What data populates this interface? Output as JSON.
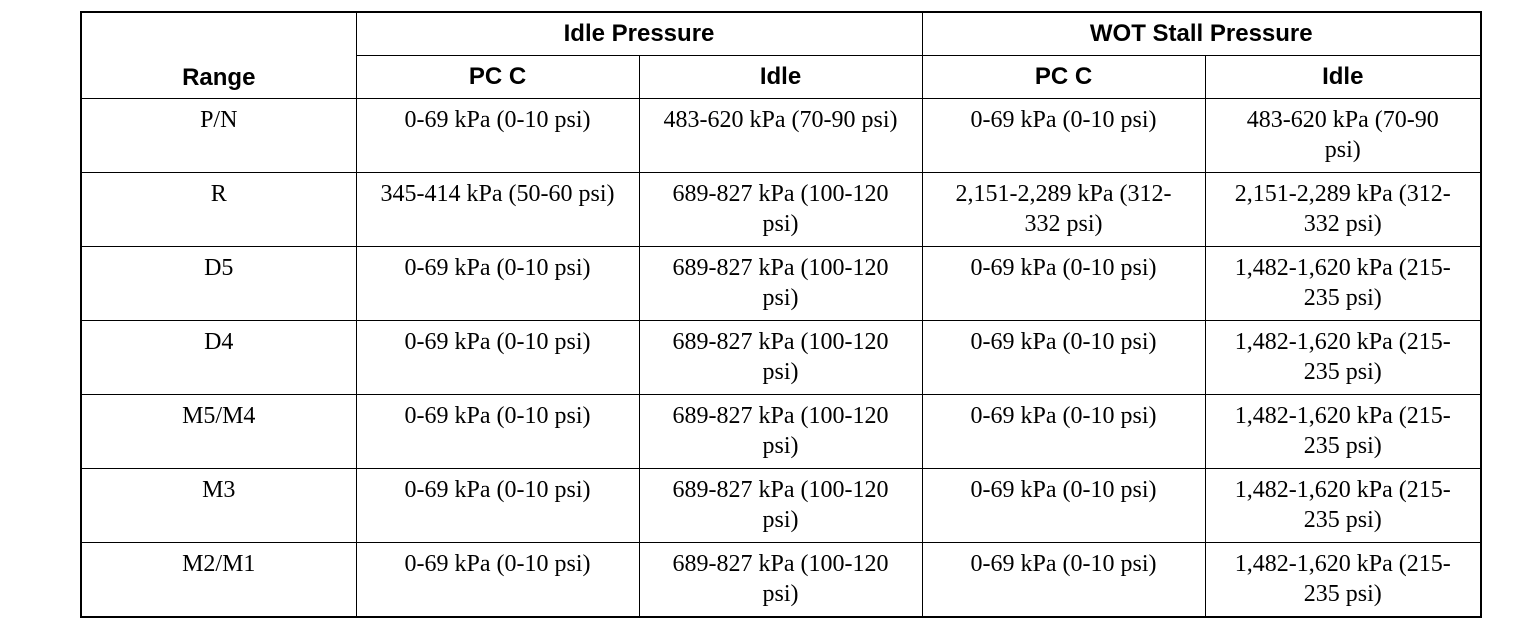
{
  "table": {
    "header": {
      "range": "Range",
      "groups": [
        "Idle Pressure",
        "WOT Stall Pressure"
      ],
      "subheaders": [
        "PC C",
        "Idle",
        "PC C",
        "Idle"
      ]
    },
    "rows": [
      [
        "P/N",
        "0-69 kPa (0-10 psi)",
        "483-620 kPa (70-90 psi)",
        "0-69 kPa (0-10 psi)",
        "483-620 kPa (70-90 psi)"
      ],
      [
        "R",
        "345-414 kPa (50-60 psi)",
        "689-827 kPa (100-120 psi)",
        "2,151-2,289 kPa (312-332 psi)",
        "2,151-2,289 kPa (312-332 psi)"
      ],
      [
        "D5",
        "0-69 kPa (0-10 psi)",
        "689-827 kPa (100-120 psi)",
        "0-69 kPa (0-10 psi)",
        "1,482-1,620 kPa (215-235 psi)"
      ],
      [
        "D4",
        "0-69 kPa (0-10 psi)",
        "689-827 kPa (100-120 psi)",
        "0-69 kPa (0-10 psi)",
        "1,482-1,620 kPa (215-235 psi)"
      ],
      [
        "M5/M4",
        "0-69 kPa (0-10 psi)",
        "689-827 kPa (100-120 psi)",
        "0-69 kPa (0-10 psi)",
        "1,482-1,620 kPa (215-235 psi)"
      ],
      [
        "M3",
        "0-69 kPa (0-10 psi)",
        "689-827 kPa (100-120 psi)",
        "0-69 kPa (0-10 psi)",
        "1,482-1,620 kPa (215-235 psi)"
      ],
      [
        "M2/M1",
        "0-69 kPa (0-10 psi)",
        "689-827 kPa (100-120 psi)",
        "0-69 kPa (0-10 psi)",
        "1,482-1,620 kPa (215-235 psi)"
      ]
    ]
  }
}
